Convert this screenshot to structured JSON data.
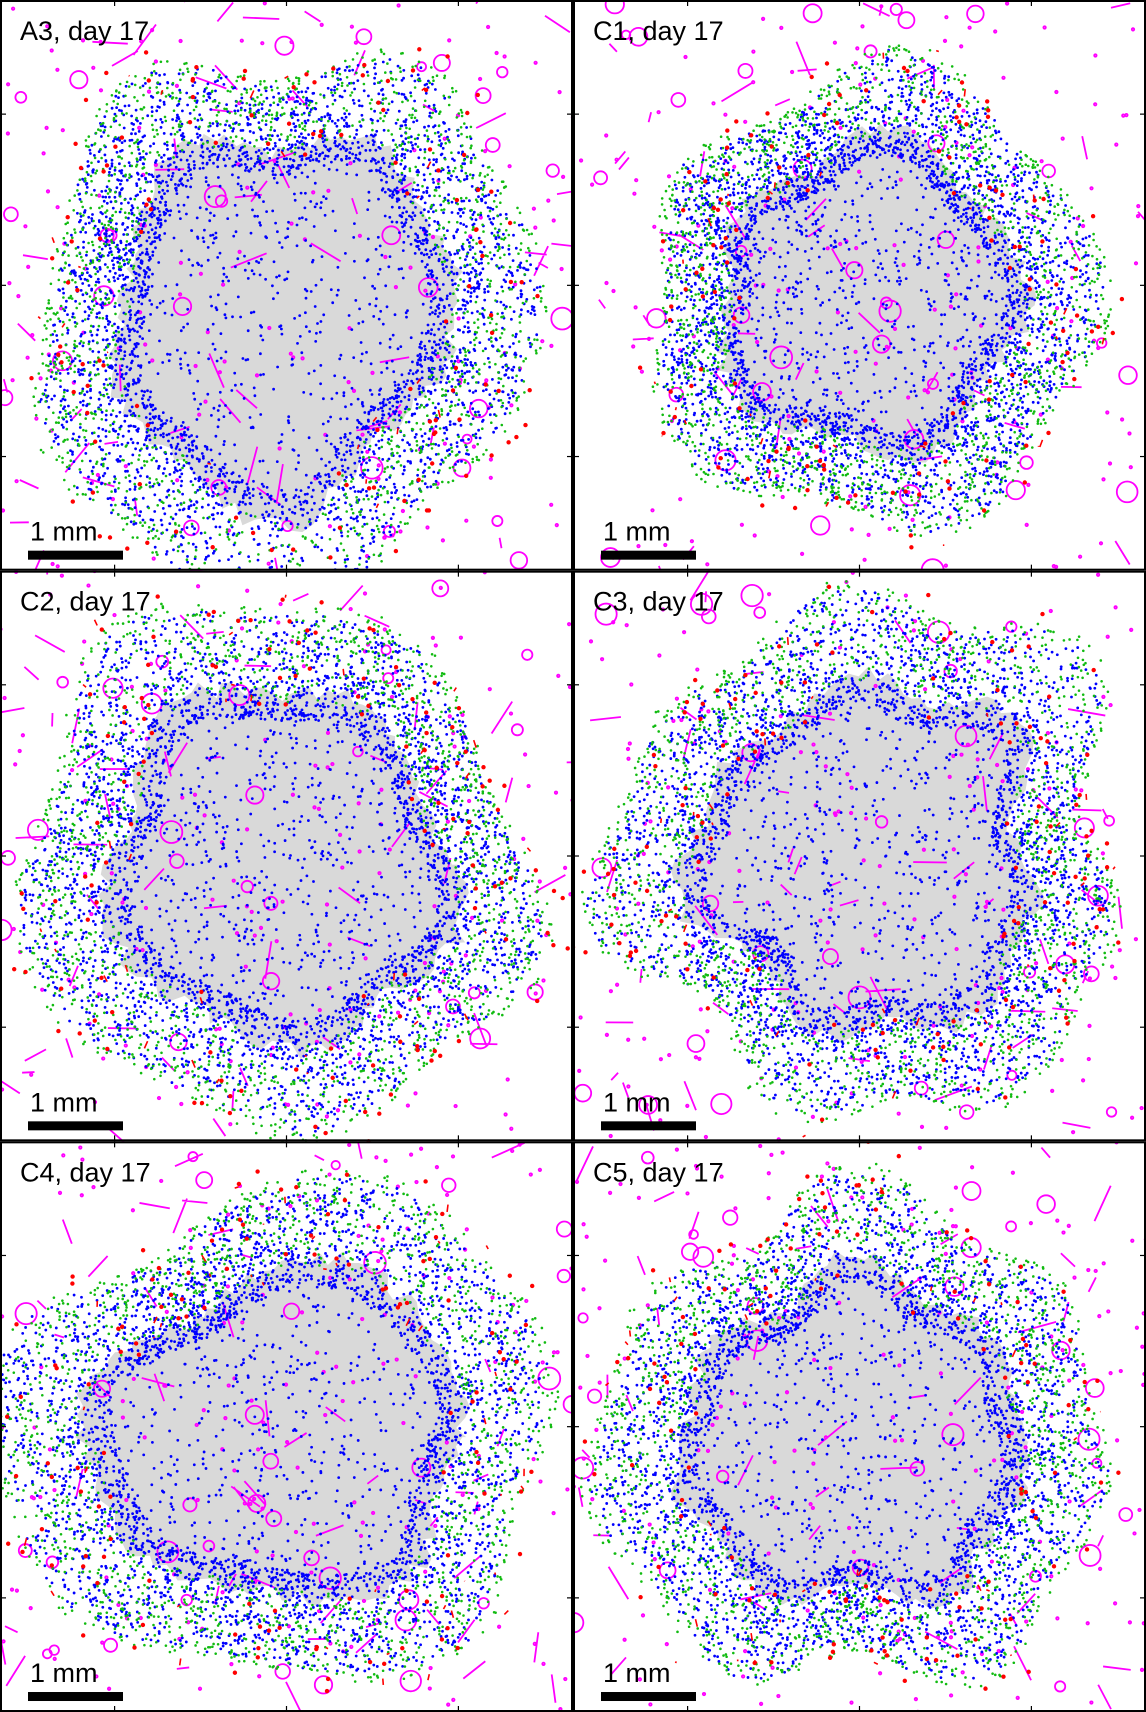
{
  "panels": [
    {
      "label": "A3, day 17",
      "scale_bar": "1 mm"
    },
    {
      "label": "C1, day 17",
      "scale_bar": "1 mm"
    },
    {
      "label": "C2, day 17",
      "scale_bar": "1 mm"
    },
    {
      "label": "C3, day 17",
      "scale_bar": "1 mm"
    },
    {
      "label": "C4, day 17",
      "scale_bar": "1 mm"
    },
    {
      "label": "C5, day 17",
      "scale_bar": "1 mm"
    }
  ]
}
